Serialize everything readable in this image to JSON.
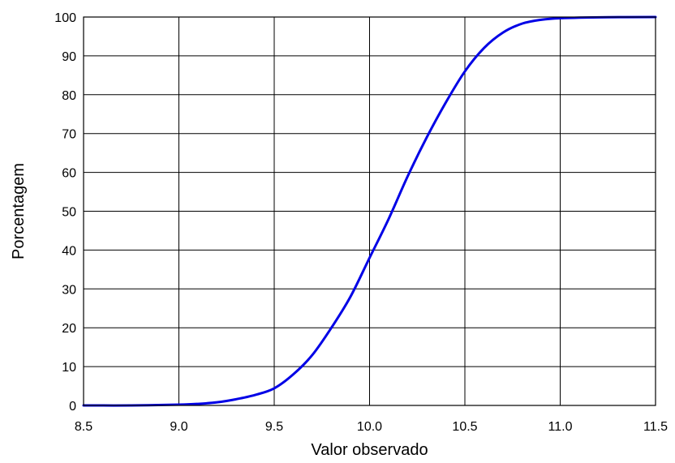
{
  "colors": {
    "curve": "#0000e6",
    "grid": "#000000",
    "frame": "#000000",
    "background": "#ffffff"
  },
  "chart_data": {
    "type": "line",
    "title": "",
    "xlabel": "Valor observado",
    "ylabel": "Porcentagem",
    "xlim": [
      8.5,
      11.5
    ],
    "ylim": [
      0,
      100
    ],
    "grid": true,
    "legend": "none",
    "x_ticks": [
      "8.5",
      "9.0",
      "9.5",
      "10.0",
      "10.5",
      "11.0",
      "11.5"
    ],
    "y_ticks": [
      "0",
      "10",
      "20",
      "30",
      "40",
      "50",
      "60",
      "70",
      "80",
      "90",
      "100"
    ],
    "series": [
      {
        "x": [
          8.5,
          8.75,
          9.0,
          9.1,
          9.2,
          9.3,
          9.4,
          9.5,
          9.6,
          9.7,
          9.8,
          9.9,
          10.0,
          10.1,
          10.2,
          10.3,
          10.4,
          10.5,
          10.6,
          10.7,
          10.8,
          10.9,
          11.0,
          11.25,
          11.5
        ],
        "y": [
          0.0,
          0.0,
          0.2,
          0.4,
          0.8,
          1.6,
          2.7,
          4.4,
          8.0,
          13.0,
          20.0,
          28.0,
          38.0,
          48.0,
          59.0,
          69.0,
          78.0,
          86.0,
          92.0,
          96.0,
          98.3,
          99.3,
          99.7,
          99.95,
          100.0
        ]
      }
    ]
  }
}
